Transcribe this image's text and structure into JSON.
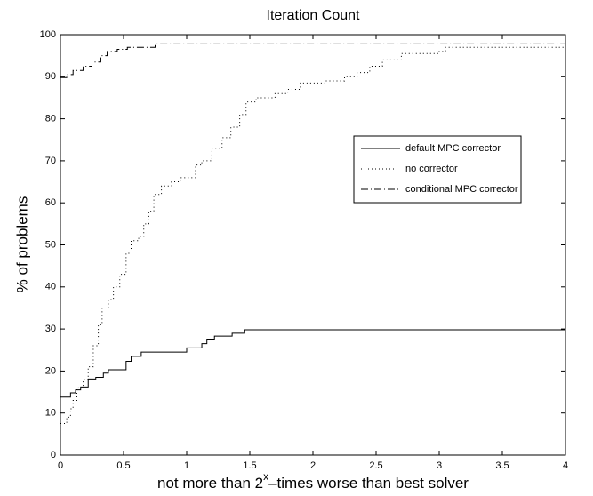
{
  "chart_data": {
    "type": "step",
    "title": "Iteration Count",
    "xlabel": [
      "not more than 2",
      "x",
      "–times worse than best solver"
    ],
    "ylabel": "% of problems",
    "xlim": [
      0,
      4
    ],
    "ylim": [
      0,
      100
    ],
    "xticks": [
      0,
      0.5,
      1,
      1.5,
      2,
      2.5,
      3,
      3.5,
      4
    ],
    "yticks": [
      0,
      10,
      20,
      30,
      40,
      50,
      60,
      70,
      80,
      90,
      100
    ],
    "grid": false,
    "legend": "right",
    "series": [
      {
        "name": "default MPC corrector",
        "color": "#000000",
        "dash": "solid",
        "x": [
          0,
          0.08,
          0.12,
          0.16,
          0.22,
          0.28,
          0.34,
          0.38,
          0.52,
          0.56,
          0.64,
          1.0,
          1.12,
          1.16,
          1.22,
          1.36,
          1.46,
          4
        ],
        "values": [
          13.8,
          14.8,
          15.5,
          16.2,
          18.1,
          18.5,
          19.5,
          20.3,
          22.3,
          23.5,
          24.5,
          25.5,
          26.5,
          27.6,
          28.3,
          29.0,
          29.8,
          29.8
        ]
      },
      {
        "name": "no corrector",
        "color": "#000000",
        "dash": "dotted",
        "x": [
          0,
          0.05,
          0.08,
          0.1,
          0.13,
          0.18,
          0.22,
          0.26,
          0.3,
          0.33,
          0.38,
          0.42,
          0.47,
          0.52,
          0.56,
          0.62,
          0.66,
          0.7,
          0.74,
          0.8,
          0.88,
          0.95,
          1.0,
          1.07,
          1.12,
          1.2,
          1.28,
          1.35,
          1.42,
          1.47,
          1.55,
          1.7,
          1.8,
          1.9,
          2.1,
          2.25,
          2.35,
          2.45,
          2.55,
          2.7,
          3.0,
          3.05,
          4
        ],
        "values": [
          7.5,
          9,
          11,
          13,
          16,
          18,
          21,
          26,
          31,
          35,
          37,
          40,
          43,
          48,
          51,
          52,
          55,
          58,
          62,
          64,
          65,
          66,
          66,
          69,
          70,
          73,
          75.5,
          78,
          81,
          84,
          85,
          86,
          87,
          88.5,
          89,
          90,
          91,
          92.5,
          94,
          95.5,
          96,
          97,
          97
        ]
      },
      {
        "name": "conditional MPC corrector",
        "color": "#000000",
        "dash": "dashdot",
        "x": [
          0,
          0.05,
          0.1,
          0.18,
          0.25,
          0.32,
          0.37,
          0.45,
          0.53,
          0.75,
          4
        ],
        "values": [
          89.8,
          90.5,
          91.5,
          92.5,
          93.5,
          95,
          96,
          96.5,
          97,
          97.8,
          97.8
        ]
      }
    ]
  }
}
